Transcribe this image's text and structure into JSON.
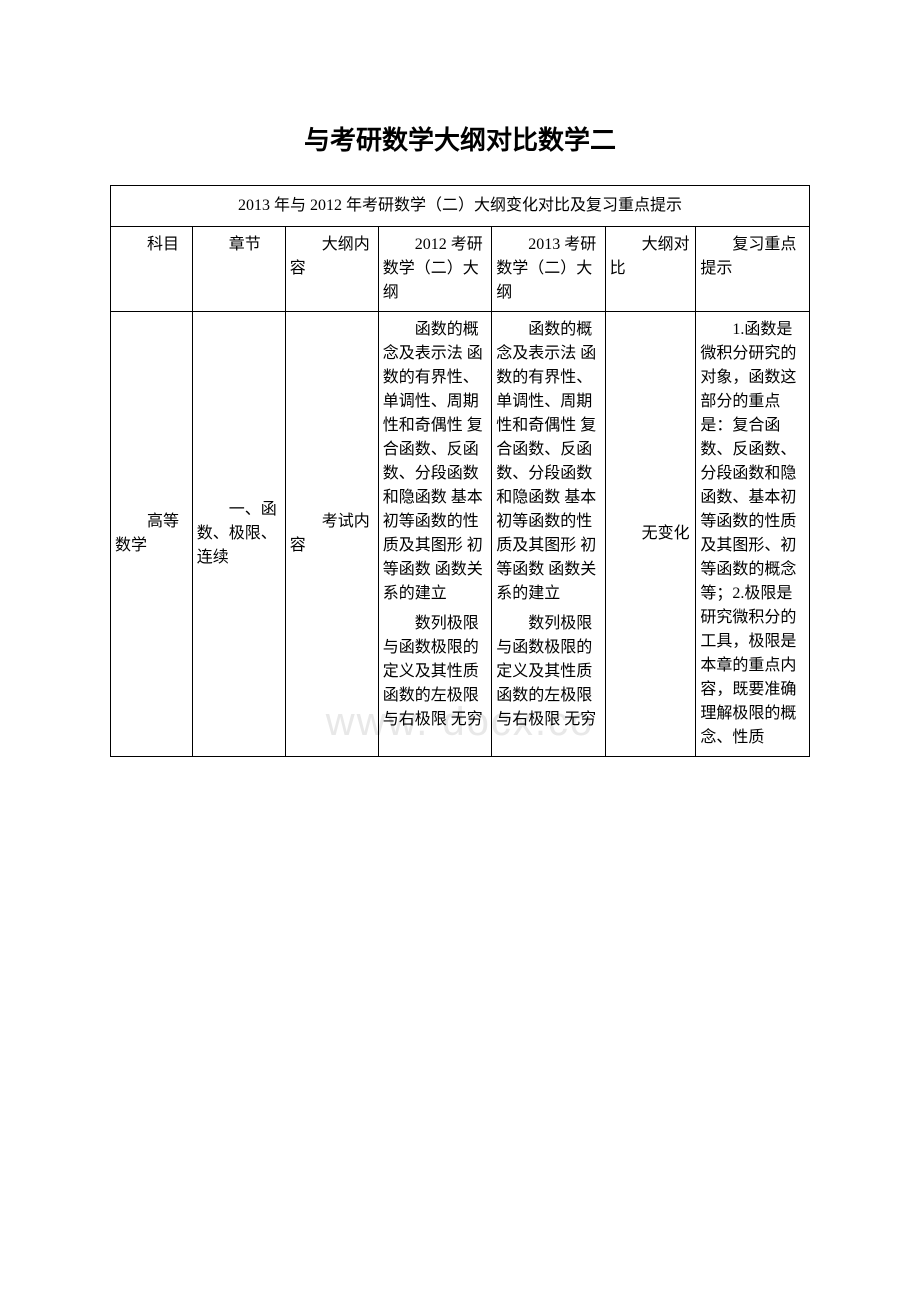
{
  "title": "与考研数学大纲对比数学二",
  "watermark": "www.        docx.co",
  "table": {
    "caption": "2013 年与 2012 年考研数学（二）大纲变化对比及复习重点提示",
    "headers": {
      "c1": "科目",
      "c2": "章节",
      "c3": "大纲内容",
      "c4": "2012 考研数学（二）大纲",
      "c5": "2013 考研数学（二）大纲",
      "c6": "大纲对比",
      "c7": "复习重点提示"
    },
    "row": {
      "c1": "高等数学",
      "c2": "一、函数、极限、连续",
      "c3": "考试内容",
      "c4a": "函数的概念及表示法 函数的有界性、单调性、周期性和奇偶性 复合函数、反函数、分段函数和隐函数 基本初等函数的性质及其图形 初等函数 函数关系的建立",
      "c4b": "数列极限与函数极限的定义及其性质 函数的左极限与右极限 无穷",
      "c5a": "函数的概念及表示法 函数的有界性、单调性、周期性和奇偶性 复合函数、反函数、分段函数和隐函数 基本初等函数的性质及其图形 初等函数 函数关系的建立",
      "c5b": "数列极限与函数极限的定义及其性质 函数的左极限与右极限 无穷",
      "c6": "无变化",
      "c7": "1.函数是微积分研究的对象，函数这部分的重点是：复合函数、反函数、分段函数和隐函数、基本初等函数的性质及其图形、初等函数的概念等；2.极限是研究微积分的工具，极限是本章的重点内容，既要准确理解极限的概念、性质"
    }
  }
}
